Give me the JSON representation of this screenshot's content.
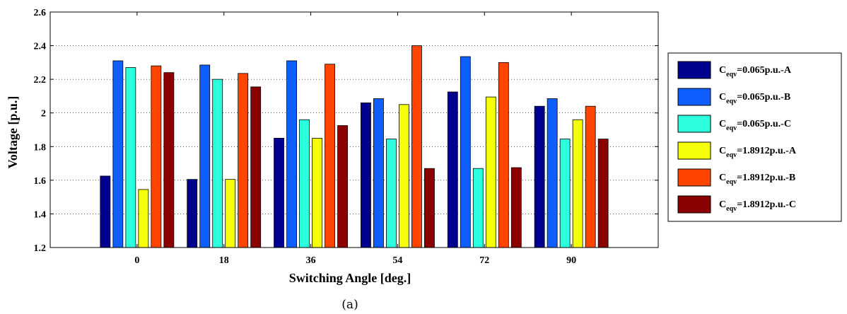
{
  "chart_data": {
    "type": "bar",
    "title": "",
    "xlabel": "Switching Angle [deg.]",
    "ylabel": "Voltage [p.u.]",
    "ylim": [
      1.2,
      2.6
    ],
    "yticks": [
      "1.2",
      "1.4",
      "1.6",
      "1.8",
      "2",
      "2.2",
      "2.4",
      "2.6"
    ],
    "categories": [
      "0",
      "18",
      "36",
      "54",
      "72",
      "90"
    ],
    "grid": "horizontal dotted",
    "legend_position": "right, outside",
    "series": [
      {
        "name": "C=0.065p.u.-A",
        "legend": {
          "prefix": "C",
          "sub": "eqv",
          "suffix": "=0.065p.u.-A"
        },
        "color": "#00008f",
        "values": [
          1.625,
          1.605,
          1.85,
          2.06,
          2.125,
          2.04
        ]
      },
      {
        "name": "C=0.065p.u.-B",
        "legend": {
          "prefix": "C",
          "sub": "eqv",
          "suffix": "=0.065p.u.-B"
        },
        "color": "#0f5fff",
        "values": [
          2.31,
          2.285,
          2.31,
          2.085,
          2.335,
          2.085
        ]
      },
      {
        "name": "C=0.065p.u.-C",
        "legend": {
          "prefix": "C",
          "sub": "eqv",
          "suffix": "=0.065p.u.-C"
        },
        "color": "#2bffdd",
        "values": [
          2.27,
          2.2,
          1.96,
          1.845,
          1.67,
          1.845
        ]
      },
      {
        "name": "C=1.8912p.u.-A",
        "legend": {
          "prefix": "C",
          "sub": "eqv",
          "suffix": "=1.8912p.u.-A"
        },
        "color": "#f5ff0a",
        "values": [
          1.545,
          1.605,
          1.85,
          2.05,
          2.095,
          1.96
        ]
      },
      {
        "name": "C=1.8912p.u.-B",
        "legend": {
          "prefix": "C",
          "sub": "eqv",
          "suffix": "=1.8912p.u.-B"
        },
        "color": "#ff4500",
        "values": [
          2.28,
          2.235,
          2.29,
          2.4,
          2.3,
          2.04
        ]
      },
      {
        "name": "C=1.8912p.u.-C",
        "legend": {
          "prefix": "C",
          "sub": "eqv",
          "suffix": "=1.8912p.u.-C"
        },
        "color": "#8b0000",
        "values": [
          2.24,
          2.155,
          1.925,
          1.67,
          1.675,
          1.845
        ]
      }
    ]
  },
  "caption": "(a)"
}
